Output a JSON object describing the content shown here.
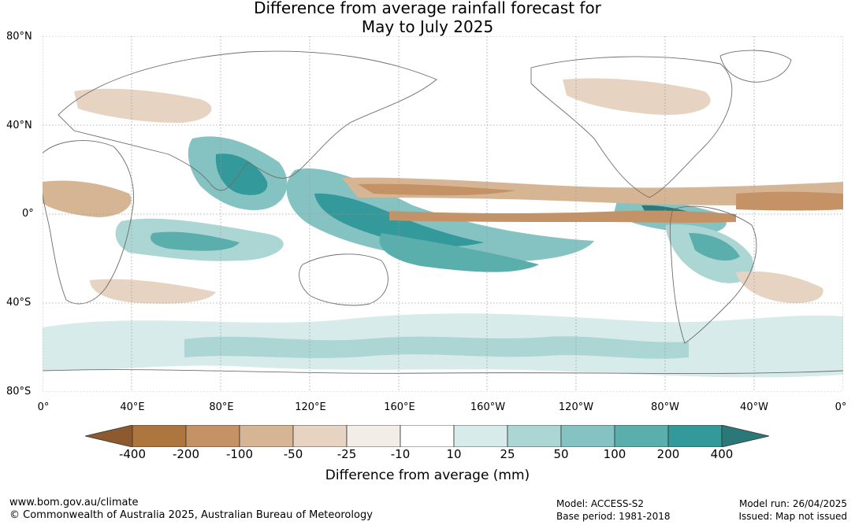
{
  "title": {
    "line1": "Difference from average rainfall forecast for",
    "line2": "May to July 2025"
  },
  "map": {
    "lat_labels": [
      "80°N",
      "40°N",
      "0°",
      "40°S",
      "80°S"
    ],
    "lon_labels": [
      "0°",
      "40°E",
      "80°E",
      "120°E",
      "160°E",
      "160°W",
      "120°W",
      "80°W",
      "40°W",
      "0°"
    ],
    "colors": {
      "ocean_dry_strong": "#9a6a3a",
      "wet_strong": "#2f9590",
      "coastline": "#6e6e6e",
      "grid": "#9a9a9a"
    }
  },
  "colorbar": {
    "ticks": [
      "-400",
      "-200",
      "-100",
      "-50",
      "-25",
      "-10",
      "10",
      "25",
      "50",
      "100",
      "200",
      "400"
    ],
    "colors": [
      "#8c5a2e",
      "#ad763f",
      "#c49264",
      "#d6b594",
      "#e6d3c2",
      "#f3ede8",
      "#ffffff",
      "#d6ebea",
      "#abd6d4",
      "#84c3c1",
      "#5aaeac",
      "#33999a",
      "#2a7877"
    ],
    "label": "Difference from average (mm)"
  },
  "footer": {
    "website": "www.bom.gov.au/climate",
    "copyright": "© Commonwealth of Australia 2025, Australian Bureau of Meteorology",
    "model": "Model: ACCESS-S2",
    "base_period": "Base period: 1981-2018",
    "model_run": "Model run: 26/04/2025",
    "issued": "Issued: Map not issued"
  }
}
